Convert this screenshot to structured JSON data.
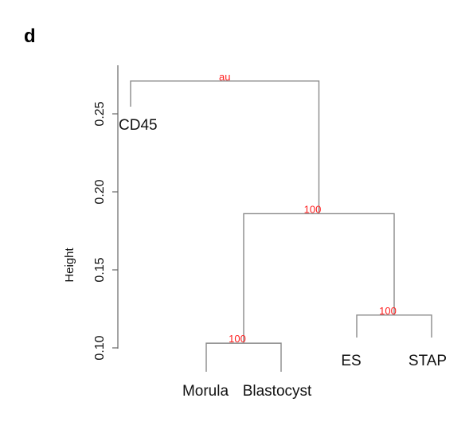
{
  "panel_label": "d",
  "chart_data": {
    "type": "dendrogram",
    "ylabel": "Height",
    "y_ticks": [
      "0.10",
      "0.15",
      "0.20",
      "0.25"
    ],
    "ylim": [
      0.1,
      0.275
    ],
    "leaves": [
      "CD45",
      "Morula",
      "Blastocyst",
      "ES",
      "STAP"
    ],
    "merges": [
      {
        "id": "n1",
        "left": "Morula",
        "right": "Blastocyst",
        "height": 0.103,
        "au": "100"
      },
      {
        "id": "n2",
        "left": "ES",
        "right": "STAP",
        "height": 0.121,
        "au": "100"
      },
      {
        "id": "n3",
        "left": "n1",
        "right": "n2",
        "height": 0.186,
        "au": "100"
      },
      {
        "id": "n4",
        "left": "CD45",
        "right": "n3",
        "height": 0.271,
        "au": "au"
      }
    ],
    "colors": {
      "branch": "#8a8a8a",
      "au_value": "#ff1f1f"
    }
  }
}
